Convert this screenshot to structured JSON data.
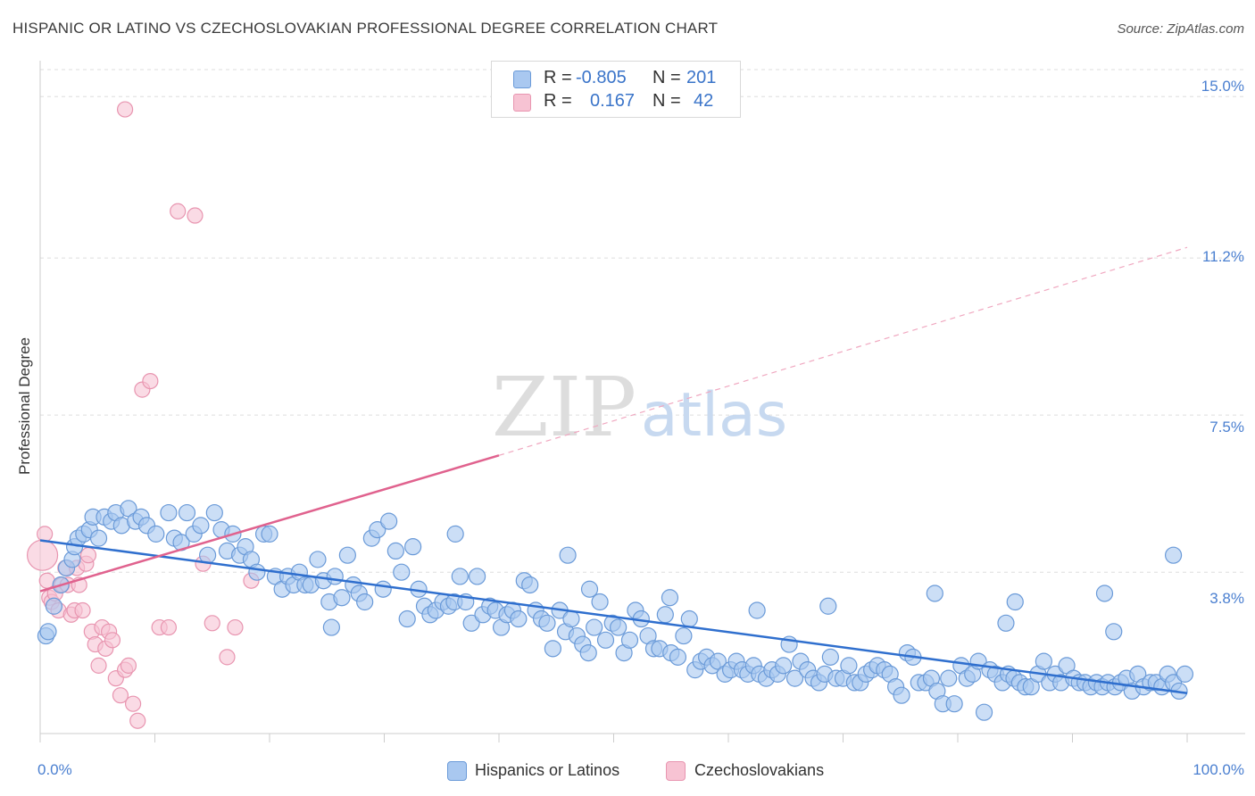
{
  "title": "HISPANIC OR LATINO VS CZECHOSLOVAKIAN PROFESSIONAL DEGREE CORRELATION CHART",
  "source": "Source: ZipAtlas.com",
  "watermark": {
    "zip": "ZIP",
    "atlas": "atlas"
  },
  "legend": {
    "rows": [
      {
        "r_label": "R =",
        "r_value": "-0.805",
        "n_label": "N =",
        "n_value": "201"
      },
      {
        "r_label": "R =",
        "r_value": "0.167",
        "n_label": "N =",
        "n_value": "42"
      }
    ]
  },
  "colors": {
    "blue_fill": "#a9c8f0",
    "blue_stroke": "#6a9ad8",
    "blue_line": "#2f6fce",
    "pink_fill": "#f7c3d3",
    "pink_stroke": "#e895b0",
    "pink_line": "#e0628e",
    "grid": "#dddddd",
    "axis_text": "#4a7fd0"
  },
  "chart_data": {
    "type": "scatter",
    "xlabel": "",
    "ylabel": "Professional Degree",
    "xlim": [
      0,
      100
    ],
    "ylim": [
      0,
      15.7
    ],
    "x_tick_labels": [
      "0.0%",
      "100.0%"
    ],
    "y_ticks": [
      3.8,
      7.5,
      11.2,
      15.0
    ],
    "y_tick_labels": [
      "3.8%",
      "7.5%",
      "11.2%",
      "15.0%"
    ],
    "grid": "horizontal dashed",
    "legend_position": "top-center",
    "series": [
      {
        "name": "Hispanics or Latinos",
        "trend": {
          "x0": 0,
          "y0": 4.55,
          "x1": 100,
          "y1": 0.95
        },
        "points": [
          [
            0.5,
            2.3
          ],
          [
            0.7,
            2.4
          ],
          [
            1.2,
            3.0
          ],
          [
            1.8,
            3.5
          ],
          [
            2.3,
            3.9
          ],
          [
            2.8,
            4.1
          ],
          [
            3.0,
            4.4
          ],
          [
            3.3,
            4.6
          ],
          [
            3.8,
            4.7
          ],
          [
            4.3,
            4.8
          ],
          [
            4.6,
            5.1
          ],
          [
            5.1,
            4.6
          ],
          [
            5.6,
            5.1
          ],
          [
            6.2,
            5.0
          ],
          [
            6.6,
            5.2
          ],
          [
            7.1,
            4.9
          ],
          [
            7.7,
            5.3
          ],
          [
            8.3,
            5.0
          ],
          [
            8.8,
            5.1
          ],
          [
            9.3,
            4.9
          ],
          [
            10.1,
            4.7
          ],
          [
            11.2,
            5.2
          ],
          [
            11.7,
            4.6
          ],
          [
            12.3,
            4.5
          ],
          [
            12.8,
            5.2
          ],
          [
            13.4,
            4.7
          ],
          [
            14.0,
            4.9
          ],
          [
            14.6,
            4.2
          ],
          [
            15.2,
            5.2
          ],
          [
            15.8,
            4.8
          ],
          [
            16.3,
            4.3
          ],
          [
            16.8,
            4.7
          ],
          [
            17.4,
            4.2
          ],
          [
            17.9,
            4.4
          ],
          [
            18.4,
            4.1
          ],
          [
            18.9,
            3.8
          ],
          [
            19.5,
            4.7
          ],
          [
            20.0,
            4.7
          ],
          [
            20.5,
            3.7
          ],
          [
            21.1,
            3.4
          ],
          [
            21.6,
            3.7
          ],
          [
            22.1,
            3.5
          ],
          [
            22.6,
            3.8
          ],
          [
            23.1,
            3.5
          ],
          [
            23.6,
            3.5
          ],
          [
            24.2,
            4.1
          ],
          [
            24.7,
            3.6
          ],
          [
            25.2,
            3.1
          ],
          [
            25.7,
            3.7
          ],
          [
            26.3,
            3.2
          ],
          [
            26.8,
            4.2
          ],
          [
            27.3,
            3.5
          ],
          [
            27.8,
            3.3
          ],
          [
            28.3,
            3.1
          ],
          [
            28.9,
            4.6
          ],
          [
            29.4,
            4.8
          ],
          [
            29.9,
            3.4
          ],
          [
            30.4,
            5.0
          ],
          [
            31.0,
            4.3
          ],
          [
            31.5,
            3.8
          ],
          [
            32.0,
            2.7
          ],
          [
            32.5,
            4.4
          ],
          [
            33.0,
            3.4
          ],
          [
            33.5,
            3.0
          ],
          [
            34.0,
            2.8
          ],
          [
            34.5,
            2.9
          ],
          [
            35.1,
            3.1
          ],
          [
            35.6,
            3.0
          ],
          [
            36.1,
            3.1
          ],
          [
            36.6,
            3.7
          ],
          [
            37.1,
            3.1
          ],
          [
            37.6,
            2.6
          ],
          [
            38.1,
            3.7
          ],
          [
            38.6,
            2.8
          ],
          [
            39.2,
            3.0
          ],
          [
            39.7,
            2.9
          ],
          [
            40.2,
            2.5
          ],
          [
            40.7,
            2.8
          ],
          [
            41.2,
            2.9
          ],
          [
            41.7,
            2.7
          ],
          [
            42.2,
            3.6
          ],
          [
            42.7,
            3.5
          ],
          [
            43.2,
            2.9
          ],
          [
            43.7,
            2.7
          ],
          [
            44.2,
            2.6
          ],
          [
            44.7,
            2.0
          ],
          [
            45.3,
            2.9
          ],
          [
            45.8,
            2.4
          ],
          [
            46.3,
            2.7
          ],
          [
            46.8,
            2.3
          ],
          [
            47.3,
            2.1
          ],
          [
            47.8,
            1.9
          ],
          [
            48.3,
            2.5
          ],
          [
            48.8,
            3.1
          ],
          [
            49.3,
            2.2
          ],
          [
            49.9,
            2.6
          ],
          [
            50.4,
            2.5
          ],
          [
            50.9,
            1.9
          ],
          [
            51.4,
            2.2
          ],
          [
            51.9,
            2.9
          ],
          [
            52.4,
            2.7
          ],
          [
            53.0,
            2.3
          ],
          [
            53.5,
            2.0
          ],
          [
            54.0,
            2.0
          ],
          [
            54.5,
            2.8
          ],
          [
            55.0,
            1.9
          ],
          [
            55.6,
            1.8
          ],
          [
            56.1,
            2.3
          ],
          [
            56.6,
            2.7
          ],
          [
            57.1,
            1.5
          ],
          [
            57.6,
            1.7
          ],
          [
            58.1,
            1.8
          ],
          [
            58.6,
            1.6
          ],
          [
            59.1,
            1.7
          ],
          [
            59.7,
            1.4
          ],
          [
            60.2,
            1.5
          ],
          [
            60.7,
            1.7
          ],
          [
            61.2,
            1.5
          ],
          [
            61.7,
            1.4
          ],
          [
            62.2,
            1.6
          ],
          [
            62.7,
            1.4
          ],
          [
            63.3,
            1.3
          ],
          [
            63.8,
            1.5
          ],
          [
            64.3,
            1.4
          ],
          [
            64.8,
            1.6
          ],
          [
            65.3,
            2.1
          ],
          [
            65.8,
            1.3
          ],
          [
            66.3,
            1.7
          ],
          [
            66.9,
            1.5
          ],
          [
            67.4,
            1.3
          ],
          [
            67.9,
            1.2
          ],
          [
            68.4,
            1.4
          ],
          [
            68.9,
            1.8
          ],
          [
            69.4,
            1.3
          ],
          [
            70.0,
            1.3
          ],
          [
            70.5,
            1.6
          ],
          [
            71.0,
            1.2
          ],
          [
            71.5,
            1.2
          ],
          [
            72.0,
            1.4
          ],
          [
            72.5,
            1.5
          ],
          [
            73.0,
            1.6
          ],
          [
            73.6,
            1.5
          ],
          [
            74.1,
            1.4
          ],
          [
            74.6,
            1.1
          ],
          [
            75.1,
            0.9
          ],
          [
            75.6,
            1.9
          ],
          [
            76.1,
            1.8
          ],
          [
            76.6,
            1.2
          ],
          [
            77.2,
            1.2
          ],
          [
            77.7,
            1.3
          ],
          [
            78.2,
            1.0
          ],
          [
            78.7,
            0.7
          ],
          [
            79.2,
            1.3
          ],
          [
            79.7,
            0.7
          ],
          [
            80.3,
            1.6
          ],
          [
            80.8,
            1.3
          ],
          [
            81.3,
            1.4
          ],
          [
            81.8,
            1.7
          ],
          [
            82.3,
            0.5
          ],
          [
            82.8,
            1.5
          ],
          [
            83.3,
            1.4
          ],
          [
            83.9,
            1.2
          ],
          [
            84.4,
            1.4
          ],
          [
            84.9,
            1.3
          ],
          [
            85.4,
            1.2
          ],
          [
            85.9,
            1.1
          ],
          [
            86.4,
            1.1
          ],
          [
            87.0,
            1.4
          ],
          [
            87.5,
            1.7
          ],
          [
            88.0,
            1.2
          ],
          [
            88.5,
            1.4
          ],
          [
            89.0,
            1.2
          ],
          [
            89.5,
            1.6
          ],
          [
            90.1,
            1.3
          ],
          [
            90.6,
            1.2
          ],
          [
            91.1,
            1.2
          ],
          [
            91.6,
            1.1
          ],
          [
            92.1,
            1.2
          ],
          [
            92.6,
            1.1
          ],
          [
            93.1,
            1.2
          ],
          [
            93.7,
            1.1
          ],
          [
            94.2,
            1.2
          ],
          [
            94.7,
            1.3
          ],
          [
            95.2,
            1.0
          ],
          [
            95.7,
            1.4
          ],
          [
            96.2,
            1.1
          ],
          [
            96.8,
            1.2
          ],
          [
            97.3,
            1.2
          ],
          [
            97.8,
            1.1
          ],
          [
            98.3,
            1.4
          ],
          [
            98.8,
            1.2
          ],
          [
            99.3,
            1.0
          ],
          [
            99.8,
            1.4
          ],
          [
            78.0,
            3.3
          ],
          [
            85.0,
            3.1
          ],
          [
            92.8,
            3.3
          ],
          [
            98.8,
            4.2
          ],
          [
            84.2,
            2.6
          ],
          [
            62.5,
            2.9
          ],
          [
            68.7,
            3.0
          ],
          [
            54.9,
            3.2
          ],
          [
            46.0,
            4.2
          ],
          [
            47.9,
            3.4
          ],
          [
            36.2,
            4.7
          ],
          [
            25.4,
            2.5
          ],
          [
            93.6,
            2.4
          ]
        ]
      },
      {
        "name": "Czechoslovakians",
        "trend_solid": {
          "x0": 0,
          "y0": 3.35,
          "x1": 40,
          "y1": 6.55
        },
        "trend_dashed": {
          "x0": 40,
          "y0": 6.55,
          "x1": 100,
          "y1": 11.45
        },
        "points": [
          [
            0.2,
            4.2
          ],
          [
            0.4,
            4.7
          ],
          [
            0.6,
            3.6
          ],
          [
            0.8,
            3.2
          ],
          [
            1.0,
            3.1
          ],
          [
            1.3,
            3.3
          ],
          [
            1.6,
            2.9
          ],
          [
            1.9,
            3.5
          ],
          [
            2.2,
            3.9
          ],
          [
            2.4,
            3.5
          ],
          [
            2.7,
            2.8
          ],
          [
            3.0,
            2.9
          ],
          [
            3.2,
            3.9
          ],
          [
            3.4,
            3.5
          ],
          [
            3.7,
            2.9
          ],
          [
            4.0,
            4.0
          ],
          [
            4.2,
            4.2
          ],
          [
            4.5,
            2.4
          ],
          [
            4.8,
            2.1
          ],
          [
            5.1,
            1.6
          ],
          [
            5.4,
            2.5
          ],
          [
            5.7,
            2.0
          ],
          [
            6.0,
            2.4
          ],
          [
            6.3,
            2.2
          ],
          [
            6.6,
            1.3
          ],
          [
            7.0,
            0.9
          ],
          [
            7.4,
            1.5
          ],
          [
            7.7,
            1.6
          ],
          [
            8.1,
            0.7
          ],
          [
            8.5,
            0.3
          ],
          [
            8.9,
            8.1
          ],
          [
            9.6,
            8.3
          ],
          [
            10.4,
            2.5
          ],
          [
            11.2,
            2.5
          ],
          [
            12.0,
            12.3
          ],
          [
            13.5,
            12.2
          ],
          [
            14.2,
            4.0
          ],
          [
            15.0,
            2.6
          ],
          [
            16.3,
            1.8
          ],
          [
            17.0,
            2.5
          ],
          [
            18.4,
            3.6
          ],
          [
            7.4,
            14.7
          ]
        ]
      }
    ]
  },
  "bottom_legend": [
    "Hispanics or Latinos",
    "Czechoslovakians"
  ]
}
